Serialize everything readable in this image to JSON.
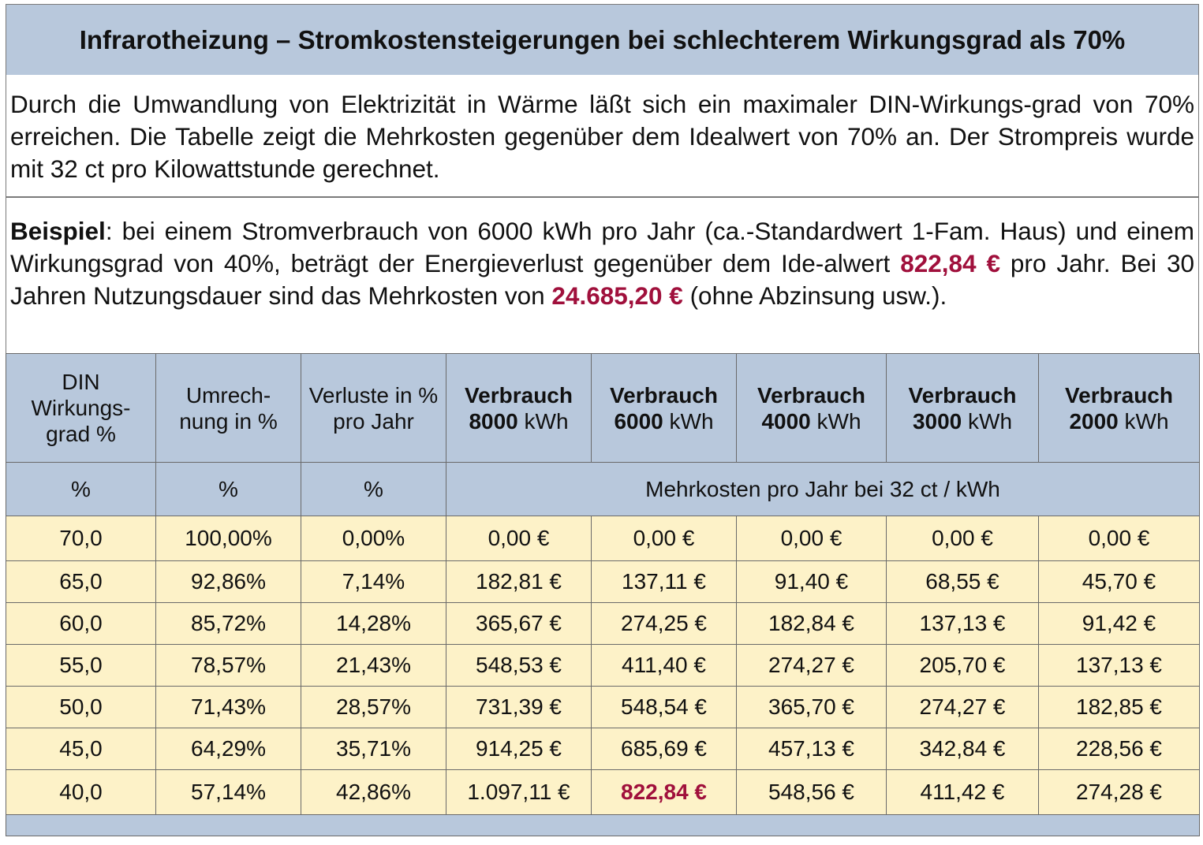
{
  "title": "Infrarotheizung – Stromkostensteigerungen bei schlechterem Wirkungsgrad als 70%",
  "intro": "Durch die Umwandlung von Elektrizität in Wärme läßt sich ein maximaler DIN-Wirkungs-grad von 70% erreichen. Die Tabelle zeigt die Mehrkosten gegenüber dem Idealwert von 70% an. Der Strompreis wurde mit 32 ct pro Kilowattstunde gerechnet.",
  "example": {
    "label": "Beispiel",
    "text1": ": bei einem Stromverbrauch von 6000 kWh pro Jahr (ca.-Standardwert 1-Fam. Haus) und einem Wirkungsgrad von 40%, beträgt der Energieverlust gegenüber dem Ide-alwert ",
    "amount1": "822,84 €",
    "text2": " pro Jahr. Bei 30 Jahren Nutzungsdauer sind das Mehrkosten von ",
    "amount2": "24.685,20 €",
    "text3": " (ohne Abzinsung usw.)."
  },
  "table": {
    "headers": {
      "din": [
        "DIN",
        "Wirkungs-",
        "grad %"
      ],
      "umrech": [
        "Umrech-",
        "nung in %"
      ],
      "verluste": [
        "Verluste in %",
        "pro Jahr"
      ],
      "verbrauch_label": "Verbrauch",
      "unit": "kWh",
      "consumption": [
        "8000",
        "6000",
        "4000",
        "3000",
        "2000"
      ]
    },
    "units_row": {
      "c1": "%",
      "c2": "%",
      "c3": "%",
      "span": "Mehrkosten pro Jahr bei 32 ct / kWh"
    },
    "rows": [
      [
        "70,0",
        "100,00%",
        "0,00%",
        "0,00 €",
        "0,00 €",
        "0,00 €",
        "0,00 €",
        "0,00 €"
      ],
      [
        "65,0",
        "92,86%",
        "7,14%",
        "182,81 €",
        "137,11 €",
        "91,40 €",
        "68,55 €",
        "45,70 €"
      ],
      [
        "60,0",
        "85,72%",
        "14,28%",
        "365,67 €",
        "274,25 €",
        "182,84 €",
        "137,13 €",
        "91,42 €"
      ],
      [
        "55,0",
        "78,57%",
        "21,43%",
        "548,53 €",
        "411,40 €",
        "274,27 €",
        "205,70 €",
        "137,13 €"
      ],
      [
        "50,0",
        "71,43%",
        "28,57%",
        "731,39 €",
        "548,54 €",
        "365,70 €",
        "274,27 €",
        "182,85 €"
      ],
      [
        "45,0",
        "64,29%",
        "35,71%",
        "914,25 €",
        "685,69 €",
        "457,13 €",
        "342,84 €",
        "228,56 €"
      ],
      [
        "40,0",
        "57,14%",
        "42,86%",
        "1.097,11 €",
        "822,84 €",
        "548,56 €",
        "411,42 €",
        "274,28 €"
      ]
    ],
    "highlight_color": "#a0103c",
    "header_bg": "#b8c8dc",
    "row_bg": "#fdf2c8"
  }
}
